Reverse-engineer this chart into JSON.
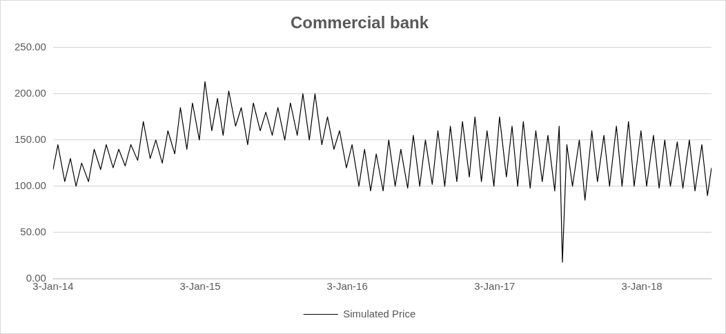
{
  "chart_data": {
    "type": "line",
    "title": "Commercial bank",
    "x": [
      "2014-01-03",
      "2014-01-15",
      "2014-02-01",
      "2014-02-15",
      "2014-03-01",
      "2014-03-15",
      "2014-04-01",
      "2014-04-15",
      "2014-05-01",
      "2014-05-15",
      "2014-06-01",
      "2014-06-15",
      "2014-07-01",
      "2014-07-15",
      "2014-08-01",
      "2014-08-15",
      "2014-09-01",
      "2014-09-15",
      "2014-10-01",
      "2014-10-15",
      "2014-11-01",
      "2014-11-15",
      "2014-12-01",
      "2014-12-15",
      "2015-01-01",
      "2015-01-15",
      "2015-02-01",
      "2015-02-15",
      "2015-03-01",
      "2015-03-15",
      "2015-04-01",
      "2015-04-15",
      "2015-05-01",
      "2015-05-15",
      "2015-06-01",
      "2015-06-15",
      "2015-07-01",
      "2015-07-15",
      "2015-08-01",
      "2015-08-15",
      "2015-09-01",
      "2015-09-15",
      "2015-10-01",
      "2015-10-15",
      "2015-11-01",
      "2015-11-15",
      "2015-12-01",
      "2015-12-15",
      "2016-01-01",
      "2016-01-15",
      "2016-02-01",
      "2016-02-15",
      "2016-03-01",
      "2016-03-15",
      "2016-04-01",
      "2016-04-15",
      "2016-05-01",
      "2016-05-15",
      "2016-06-01",
      "2016-06-15",
      "2016-07-01",
      "2016-07-15",
      "2016-08-01",
      "2016-08-15",
      "2016-09-01",
      "2016-09-15",
      "2016-10-01",
      "2016-10-15",
      "2016-11-01",
      "2016-11-15",
      "2016-12-01",
      "2016-12-15",
      "2017-01-01",
      "2017-01-15",
      "2017-02-01",
      "2017-02-15",
      "2017-03-01",
      "2017-03-15",
      "2017-04-01",
      "2017-04-15",
      "2017-05-01",
      "2017-05-15",
      "2017-06-01",
      "2017-06-12",
      "2017-06-20",
      "2017-07-01",
      "2017-07-15",
      "2017-08-01",
      "2017-08-15",
      "2017-09-01",
      "2017-09-15",
      "2017-10-01",
      "2017-10-15",
      "2017-11-01",
      "2017-11-15",
      "2017-12-01",
      "2017-12-15",
      "2018-01-01",
      "2018-01-15",
      "2018-02-01",
      "2018-02-15",
      "2018-03-01",
      "2018-03-15",
      "2018-04-01",
      "2018-04-15",
      "2018-05-01",
      "2018-05-15",
      "2018-06-01",
      "2018-06-15",
      "2018-06-25"
    ],
    "series": [
      {
        "name": "Simulated Price",
        "color": "#000000",
        "values": [
          118,
          145,
          105,
          130,
          100,
          125,
          105,
          140,
          118,
          145,
          120,
          140,
          122,
          145,
          128,
          170,
          130,
          150,
          125,
          160,
          135,
          185,
          140,
          190,
          150,
          213,
          160,
          195,
          155,
          203,
          165,
          185,
          145,
          190,
          160,
          180,
          155,
          185,
          150,
          190,
          155,
          200,
          150,
          200,
          145,
          175,
          140,
          160,
          120,
          145,
          100,
          140,
          95,
          135,
          95,
          150,
          100,
          140,
          98,
          155,
          100,
          150,
          102,
          160,
          100,
          165,
          105,
          170,
          110,
          175,
          105,
          160,
          100,
          175,
          110,
          165,
          100,
          170,
          98,
          160,
          105,
          155,
          95,
          165,
          18,
          145,
          100,
          150,
          85,
          160,
          105,
          155,
          100,
          165,
          100,
          170,
          100,
          160,
          100,
          155,
          98,
          150,
          100,
          148,
          98,
          150,
          95,
          145,
          90,
          120
        ]
      }
    ],
    "xlim": [
      "2014-01-03",
      "2018-06-25"
    ],
    "xticks": [
      {
        "value": "2014-01-03",
        "label": "3-Jan-14"
      },
      {
        "value": "2015-01-03",
        "label": "3-Jan-15"
      },
      {
        "value": "2016-01-03",
        "label": "3-Jan-16"
      },
      {
        "value": "2017-01-03",
        "label": "3-Jan-17"
      },
      {
        "value": "2018-01-03",
        "label": "3-Jan-18"
      }
    ],
    "ylim": [
      0,
      250
    ],
    "yticks": [
      {
        "value": 0,
        "label": "0.00"
      },
      {
        "value": 50,
        "label": "50.00"
      },
      {
        "value": 100,
        "label": "100.00"
      },
      {
        "value": 150,
        "label": "150.00"
      },
      {
        "value": 200,
        "label": "200.00"
      },
      {
        "value": 250,
        "label": "250.00"
      }
    ],
    "grid": "y",
    "legend": "bottom",
    "marker": "none",
    "line_style": "solid"
  }
}
